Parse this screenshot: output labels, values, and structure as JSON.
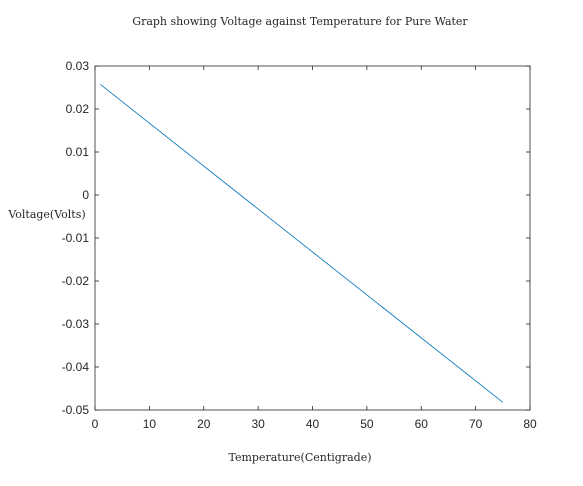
{
  "chart_data": {
    "type": "line",
    "title": "Graph showing Voltage against Temperature for Pure Water",
    "xlabel": "Temperature(Centigrade)",
    "ylabel": "Voltage(Volts)",
    "xlim": [
      0,
      80
    ],
    "ylim": [
      -0.05,
      0.03
    ],
    "xticks": [
      0,
      10,
      20,
      30,
      40,
      50,
      60,
      70,
      80
    ],
    "xtick_labels": [
      "0",
      "10",
      "20",
      "30",
      "40",
      "50",
      "60",
      "70",
      "80"
    ],
    "yticks": [
      0.03,
      0.02,
      0.01,
      0,
      -0.01,
      -0.02,
      -0.03,
      -0.04,
      -0.05
    ],
    "ytick_labels": [
      "0.03",
      "0.02",
      "0.01",
      "0",
      "-0.01",
      "-0.02",
      "-0.03",
      "-0.04",
      "-0.05"
    ],
    "grid": false,
    "legend": "none",
    "series": [
      {
        "x": [
          1,
          75
        ],
        "y": [
          0.0257,
          -0.0482
        ],
        "color": "#0072bd"
      }
    ]
  }
}
